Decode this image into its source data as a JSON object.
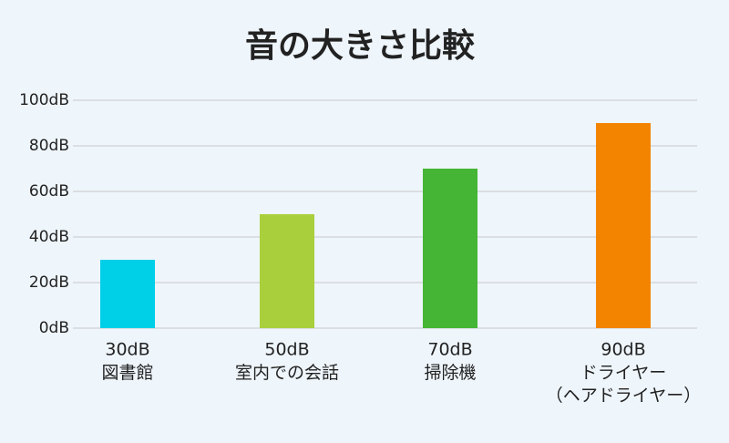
{
  "chart_data": {
    "type": "bar",
    "title": "音の大きさ比較",
    "categories": [
      "図書館",
      "室内での会話",
      "掃除機",
      "ドライヤー\n（ヘアドライヤー）"
    ],
    "values": [
      30,
      50,
      70,
      90
    ],
    "value_labels": [
      "30dB",
      "50dB",
      "70dB",
      "90dB"
    ],
    "colors": [
      "#00cfe8",
      "#a9d03c",
      "#44b535",
      "#f38400"
    ],
    "ylim": [
      0,
      100
    ],
    "yticks": [
      {
        "value": 0,
        "label": "0dB"
      },
      {
        "value": 20,
        "label": "20dB"
      },
      {
        "value": 40,
        "label": "40dB"
      },
      {
        "value": 60,
        "label": "60dB"
      },
      {
        "value": 80,
        "label": "80dB"
      },
      {
        "value": 100,
        "label": "100dB"
      }
    ],
    "grid": true
  }
}
